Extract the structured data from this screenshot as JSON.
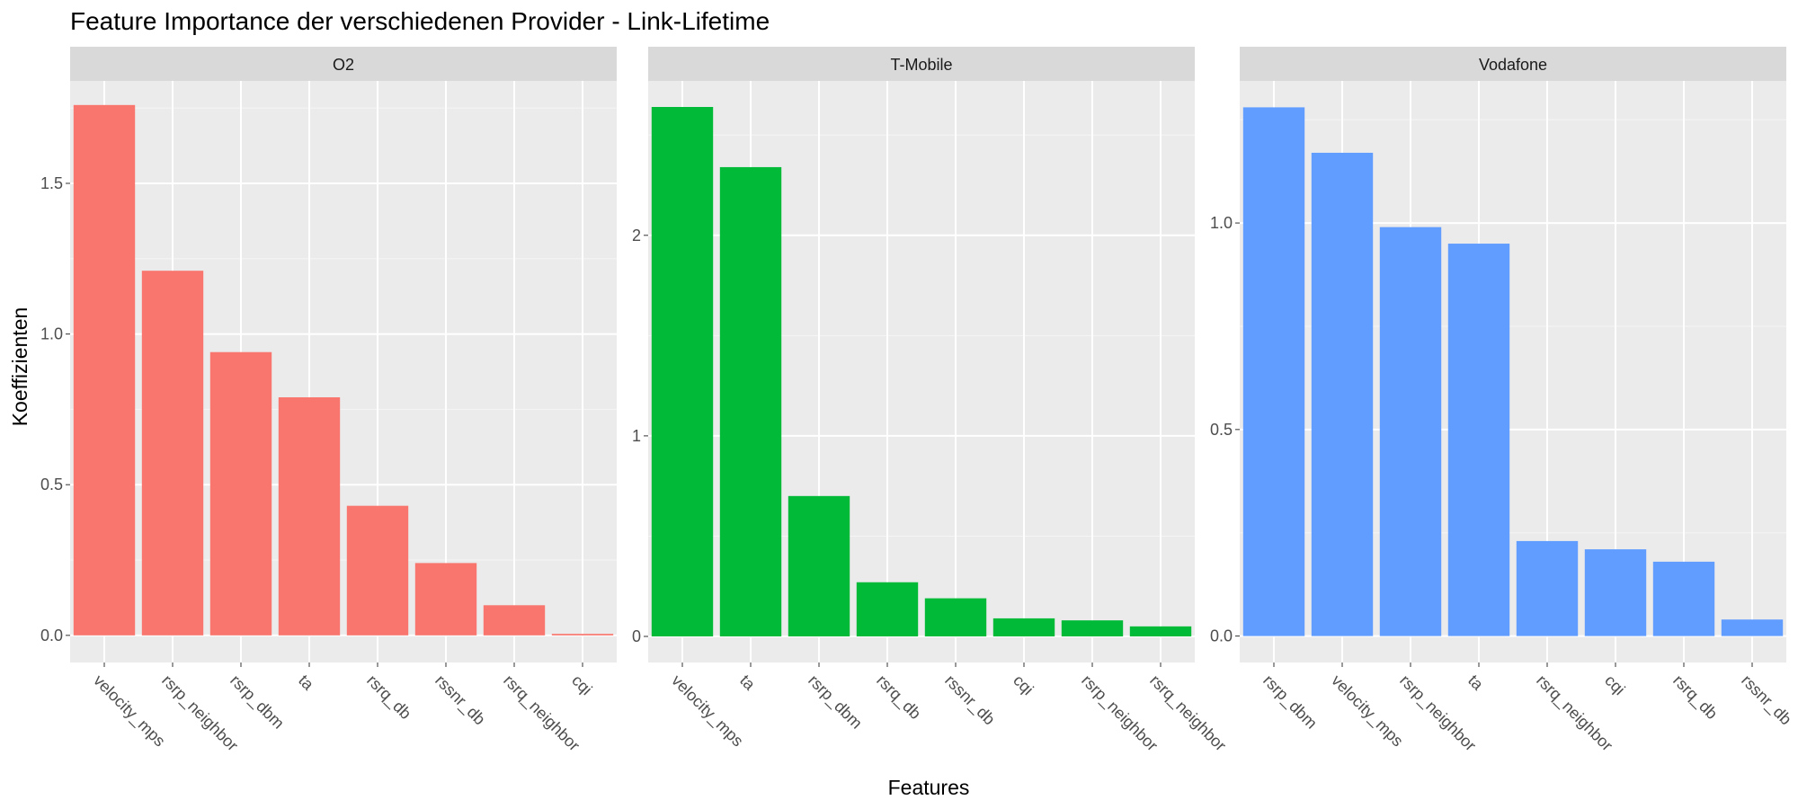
{
  "chart_data": {
    "type": "bar",
    "title": "Feature Importance der verschiedenen Provider - Link-Lifetime",
    "xlabel": "Features",
    "ylabel": "Koeffizienten",
    "grid": true,
    "legend": "none",
    "facets": [
      {
        "name": "O2",
        "color": "#F8766D",
        "categories": [
          "velocity_mps",
          "rsrp_neighbor",
          "rsrp_dbm",
          "ta",
          "rsrq_db",
          "rssnr_db",
          "rsrq_neighbor",
          "cqi"
        ],
        "values": [
          1.76,
          1.21,
          0.94,
          0.79,
          0.43,
          0.24,
          0.1,
          0.005
        ],
        "ylim": [
          -0.09,
          1.84
        ],
        "yticks": [
          0.0,
          0.5,
          1.0,
          1.5
        ],
        "ytick_labels": [
          "0.0",
          "0.5",
          "1.0",
          "1.5"
        ]
      },
      {
        "name": "T-Mobile",
        "color": "#00BA38",
        "categories": [
          "velocity_mps",
          "ta",
          "rsrp_dbm",
          "rsrq_db",
          "rssnr_db",
          "cqi",
          "rsrp_neighbor",
          "rsrq_neighbor"
        ],
        "values": [
          2.64,
          2.34,
          0.7,
          0.27,
          0.19,
          0.09,
          0.08,
          0.05
        ],
        "ylim": [
          -0.13,
          2.77
        ],
        "yticks": [
          0,
          1,
          2
        ],
        "ytick_labels": [
          "0",
          "1",
          "2"
        ]
      },
      {
        "name": "Vodafone",
        "color": "#619CFF",
        "categories": [
          "rsrp_dbm",
          "velocity_mps",
          "rsrp_neighbor",
          "ta",
          "rsrq_neighbor",
          "cqi",
          "rsrq_db",
          "rssnr_db"
        ],
        "values": [
          1.28,
          1.17,
          0.99,
          0.95,
          0.23,
          0.21,
          0.18,
          0.04
        ],
        "ylim": [
          -0.064,
          1.344
        ],
        "yticks": [
          0.0,
          0.5,
          1.0
        ],
        "ytick_labels": [
          "0.0",
          "0.5",
          "1.0"
        ]
      }
    ]
  }
}
